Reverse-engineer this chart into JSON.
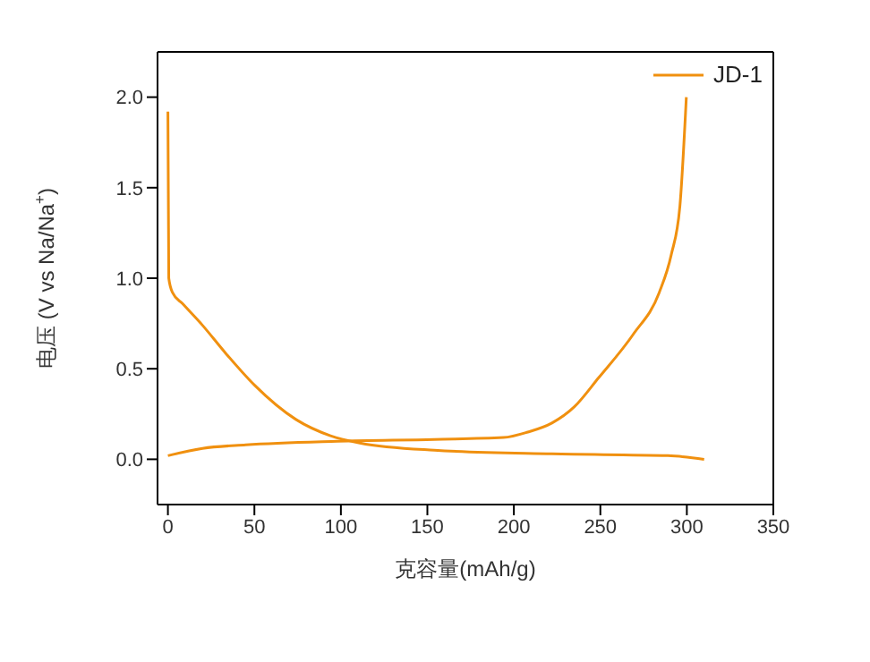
{
  "chart_data": {
    "type": "line",
    "xlabel": "克容量(mAh/g)",
    "ylabel": "电压 (V vs Na/Na$^{+}$)",
    "xlim": [
      -6,
      350
    ],
    "xticks": [
      0,
      50,
      100,
      150,
      200,
      250,
      300,
      350
    ],
    "ylim": [
      -0.25,
      2.25
    ],
    "yticks": [
      {
        "value": 0,
        "label": "0.0"
      },
      {
        "value": 0.5,
        "label": "0.5"
      },
      {
        "value": 1,
        "label": "1.0"
      },
      {
        "value": 1.5,
        "label": "1.5"
      },
      {
        "value": 2,
        "label": "2.0"
      }
    ],
    "legend": "top right",
    "marker": "none",
    "line_style": "solid",
    "series": [
      {
        "name": "JD-1",
        "color": "#f0900f",
        "x": [
          0,
          0.5,
          2.7,
          8.4,
          20,
          33,
          50,
          74,
          94,
          111,
          154,
          222,
          289,
          310
        ],
        "values": [
          1.92,
          1.0,
          0.92,
          0.86,
          0.74,
          0.59,
          0.41,
          0.22,
          0.13,
          0.09,
          0.05,
          0.03,
          0.02,
          0
        ]
      },
      {
        "color": "#f0900f",
        "x": [
          0,
          20,
          45,
          98,
          154,
          194,
          208,
          222,
          235,
          249,
          269,
          284,
          291,
          296,
          299.7
        ],
        "values": [
          0.02,
          0.06,
          0.08,
          0.1,
          0.11,
          0.12,
          0.15,
          0.2,
          0.29,
          0.45,
          0.69,
          0.92,
          1.13,
          1.4,
          2.0
        ]
      }
    ]
  }
}
